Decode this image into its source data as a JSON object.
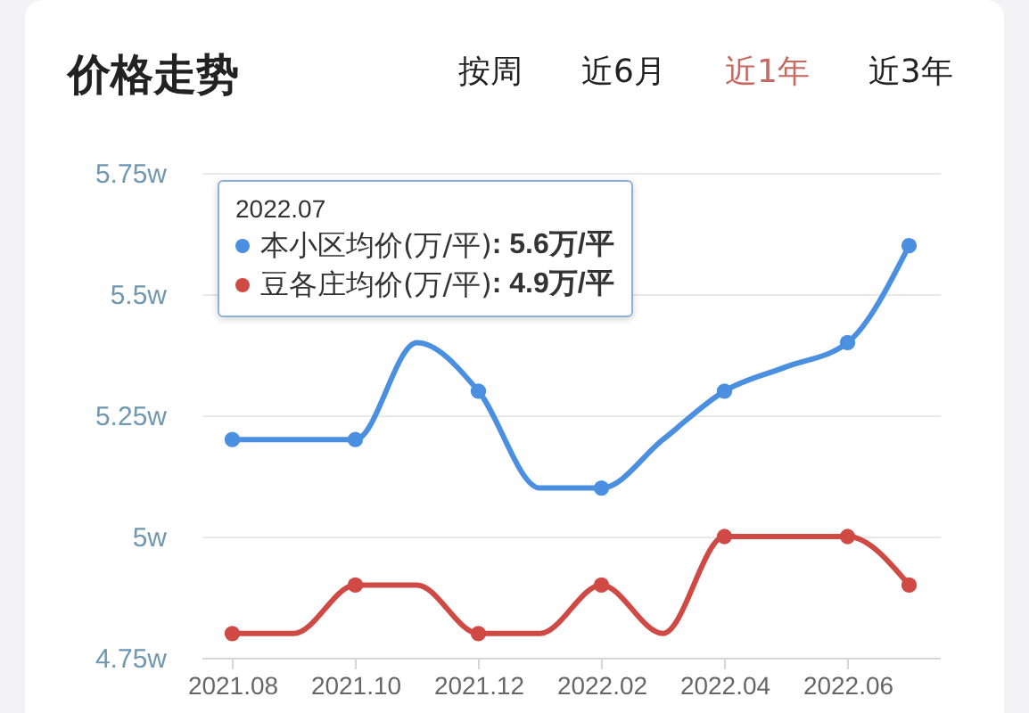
{
  "chart_data": {
    "type": "line",
    "title": "价格走势",
    "categories": [
      "2021.08",
      null,
      "2021.10",
      null,
      "2021.12",
      null,
      "2022.02",
      null,
      "2022.04",
      null,
      "2022.06",
      null
    ],
    "series": [
      {
        "name": "本小区均价(万/平)",
        "color": "#4a8fe0",
        "values": [
          5.2,
          5.2,
          5.2,
          5.4,
          5.3,
          5.1,
          5.1,
          5.2,
          5.3,
          5.35,
          5.4,
          5.6
        ]
      },
      {
        "name": "豆各庄均价(万/平)",
        "color": "#cf4a45",
        "values": [
          4.8,
          4.8,
          4.9,
          4.9,
          4.8,
          4.8,
          4.9,
          4.8,
          5.0,
          5.0,
          5.0,
          4.9
        ]
      }
    ],
    "ylim": [
      4.75,
      5.75
    ],
    "yticks": [
      {
        "value": 4.75,
        "label": "4.75w"
      },
      {
        "value": 5,
        "label": "5w"
      },
      {
        "value": 5.25,
        "label": "5.25w"
      },
      {
        "value": 5.5,
        "label": "5.5w"
      },
      {
        "value": 5.75,
        "label": "5.75w"
      }
    ],
    "grid": "y",
    "legend": "top left",
    "marker": "circle",
    "line_style": "solid",
    "annotations": [
      "按周",
      "近6月",
      "近1年",
      "近3年",
      "2022.07",
      ": 5.6万/平",
      ": 4.9万/平"
    ]
  }
}
